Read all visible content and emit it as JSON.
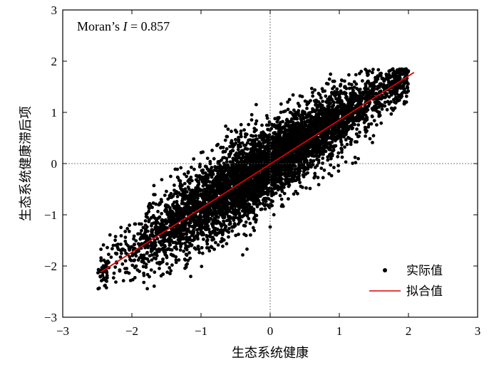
{
  "chart_data": {
    "type": "scatter",
    "xlabel": "生态系统健康",
    "ylabel": "生态系统健康滞后项",
    "xlim": [
      -3,
      3
    ],
    "ylim": [
      -3,
      3
    ],
    "x_ticks": [
      -3,
      -2,
      -1,
      0,
      1,
      2,
      3
    ],
    "y_ticks": [
      -3,
      -2,
      -1,
      0,
      1,
      2,
      3
    ],
    "x_tick_labels": [
      "−3",
      "−2",
      "−1",
      "0",
      "1",
      "2",
      "3"
    ],
    "y_tick_labels": [
      "−3",
      "−2",
      "−1",
      "0",
      "1",
      "2",
      "3"
    ],
    "reference_lines": {
      "x": 0,
      "y": 0,
      "style": "dotted"
    },
    "annotation": {
      "prefix": "Moran’s ",
      "symbol": "I",
      "suffix": " = 0.857"
    },
    "moran_i": 0.857,
    "point_cloud": {
      "description_points": [
        [
          -2.45,
          -2.35
        ],
        [
          -2.0,
          -1.9
        ],
        [
          -1.5,
          -1.3
        ],
        [
          -1.0,
          -0.9
        ],
        [
          -0.5,
          -0.4
        ],
        [
          0.0,
          0.0
        ],
        [
          0.5,
          0.4
        ],
        [
          1.0,
          0.85
        ],
        [
          1.5,
          1.25
        ],
        [
          1.9,
          1.6
        ]
      ],
      "x_range": [
        -2.5,
        2.0
      ],
      "y_range": [
        -2.45,
        1.85
      ],
      "color": "#000000"
    },
    "fit_line": {
      "x": [
        -2.45,
        2.08
      ],
      "y": [
        -2.12,
        1.78
      ],
      "color": "#e00000"
    },
    "legend": {
      "position": "bottom-right",
      "entries": [
        {
          "label": "实际值",
          "marker": "dot",
          "color": "#000000"
        },
        {
          "label": "拟合值",
          "marker": "line",
          "color": "#e00000"
        }
      ]
    },
    "grid": false
  }
}
